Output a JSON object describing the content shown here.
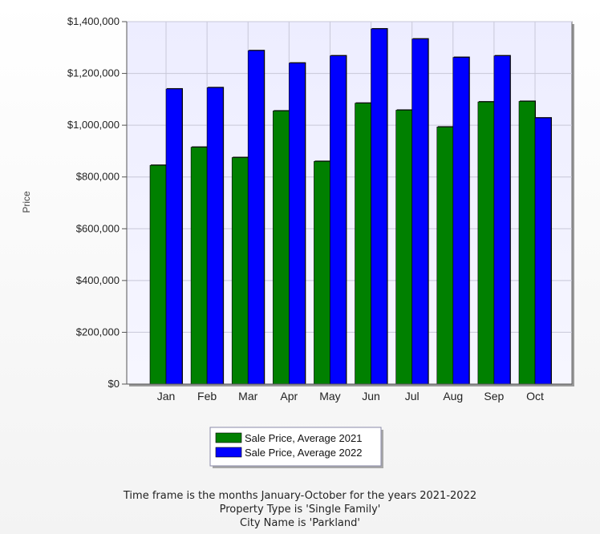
{
  "chart_data": {
    "type": "bar",
    "ylabel": "Price",
    "xlabel": "",
    "ylim": [
      0,
      1400000
    ],
    "y_ticks": [
      {
        "value": 0,
        "label": "$0"
      },
      {
        "value": 200000,
        "label": "$200,000"
      },
      {
        "value": 400000,
        "label": "$400,000"
      },
      {
        "value": 600000,
        "label": "$600,000"
      },
      {
        "value": 800000,
        "label": "$800,000"
      },
      {
        "value": 1000000,
        "label": "$1,000,000"
      },
      {
        "value": 1200000,
        "label": "$1,200,000"
      },
      {
        "value": 1400000,
        "label": "$1,400,000"
      }
    ],
    "categories": [
      "Jan",
      "Feb",
      "Mar",
      "Apr",
      "May",
      "Jun",
      "Jul",
      "Aug",
      "Sep",
      "Oct"
    ],
    "series": [
      {
        "name": "Sale Price, Average 2021",
        "color": "#008000",
        "values": [
          845000,
          915000,
          875000,
          1055000,
          860000,
          1085000,
          1058000,
          993000,
          1090000,
          1092000
        ]
      },
      {
        "name": "Sale Price, Average 2022",
        "color": "#0000ff",
        "values": [
          1140000,
          1145000,
          1288000,
          1240000,
          1268000,
          1372000,
          1333000,
          1262000,
          1268000,
          1028000
        ]
      }
    ],
    "grid": true,
    "legend_position": "bottom"
  },
  "caption": {
    "line1": "Time frame is the months January-October for the years 2021-2022",
    "line2": "Property Type is 'Single Family'",
    "line3": "City Name is 'Parkland'"
  },
  "colors": {
    "plot_background": "#e9e9ff",
    "gridline": "#c8c8d8"
  }
}
